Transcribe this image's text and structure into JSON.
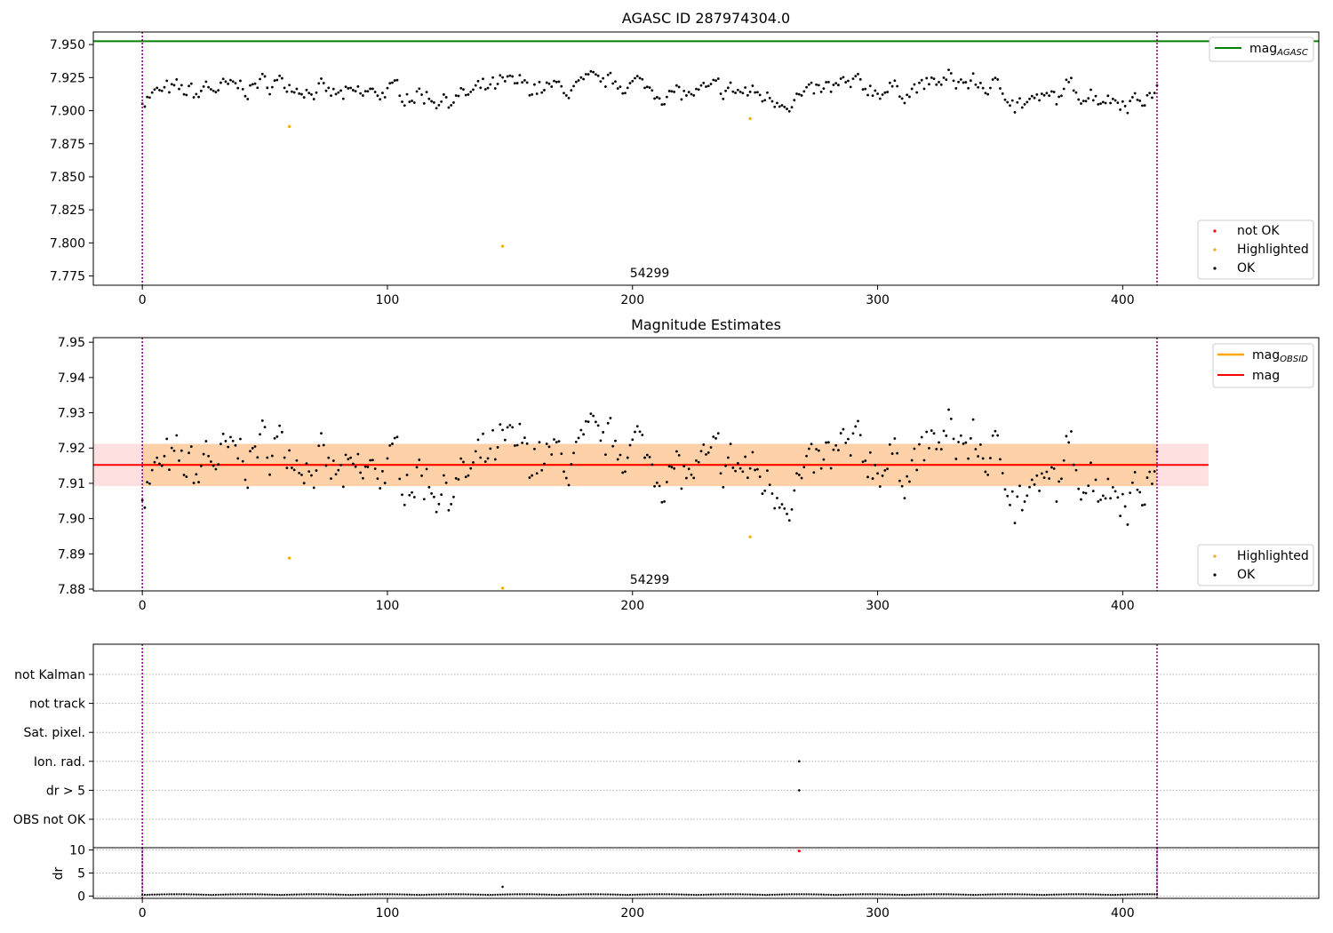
{
  "chart_data": [
    {
      "type": "scatter",
      "title": "AGASC ID 287974304.0",
      "xlim": [
        -20,
        480
      ],
      "ylim": [
        7.768,
        7.9595
      ],
      "xticks": [
        0,
        100,
        200,
        300,
        400
      ],
      "yticks": [
        "7.775",
        "7.800",
        "7.825",
        "7.850",
        "7.875",
        "7.900",
        "7.925",
        "7.950"
      ],
      "vlines": [
        0,
        414
      ],
      "hline": {
        "label": "mag",
        "sub": "AGASC",
        "value": 7.9525,
        "color": "#008000"
      },
      "obsid_label": {
        "text": "54299",
        "x": 207
      },
      "highlighted": [
        [
          60,
          7.888
        ],
        [
          147,
          7.7975
        ],
        [
          248,
          7.894
        ]
      ],
      "legend_markers": [
        "not OK",
        "Highlighted",
        "OK"
      ],
      "colors": {
        "ok": "#000000",
        "highlighted": "#FFA500",
        "not_ok": "#FF0000"
      }
    },
    {
      "type": "scatter",
      "title": "Magnitude Estimates",
      "xlim": [
        -20,
        480
      ],
      "ylim": [
        7.8795,
        7.9513
      ],
      "xticks": [
        0,
        100,
        200,
        300,
        400
      ],
      "yticks": [
        "7.88",
        "7.89",
        "7.90",
        "7.91",
        "7.92",
        "7.93",
        "7.94",
        "7.95"
      ],
      "vlines": [
        0,
        414
      ],
      "band": {
        "y0": 7.9092,
        "y1": 7.9212,
        "x0": -20,
        "x1": 435
      },
      "lines": [
        {
          "label": "mag",
          "sub": "OBSID",
          "value": 7.9153,
          "color": "#FFA500",
          "x0": 0,
          "x1": 414
        },
        {
          "label": "mag",
          "sub": "",
          "value": 7.9152,
          "color": "#FF0000",
          "x0": -20,
          "x1": 435
        }
      ],
      "obsid_label": {
        "text": "54299",
        "x": 207
      },
      "highlighted": [
        [
          60,
          7.8888
        ],
        [
          147,
          7.8803
        ],
        [
          248,
          7.8948
        ]
      ],
      "legend_markers": [
        "Highlighted",
        "OK"
      ]
    },
    {
      "type": "scatter",
      "xlim": [
        -20,
        480
      ],
      "categories": [
        "not Kalman",
        "not track",
        "Sat. pixel.",
        "Ion. rad.",
        "dr > 5",
        "OBS not OK"
      ],
      "flags": [
        [
          "Ion. rad.",
          268
        ],
        [
          "dr > 5",
          268
        ]
      ],
      "vlines": [
        0,
        414
      ]
    },
    {
      "type": "scatter",
      "ylabel": "dr",
      "xlim": [
        -20,
        480
      ],
      "ylim": [
        -0.5,
        10.5
      ],
      "yticks": [
        "0",
        "5",
        "10"
      ],
      "xticks": [
        0,
        100,
        200,
        300,
        400
      ],
      "vlines": [
        0,
        414
      ],
      "outliers": [
        [
          147,
          2.0
        ]
      ],
      "not_ok": [
        [
          268,
          9.8
        ]
      ]
    }
  ]
}
